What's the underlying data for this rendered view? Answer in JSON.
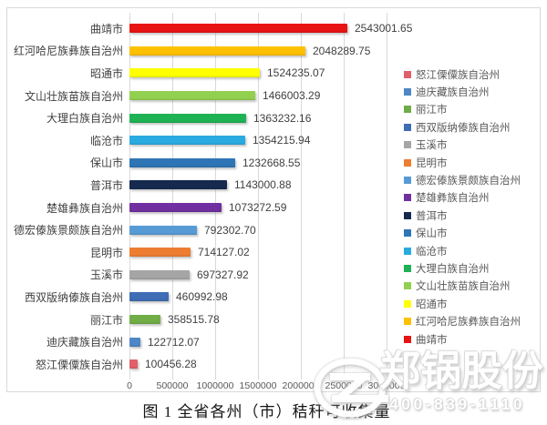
{
  "page": {
    "background_color": "#ffffff",
    "frame_border_color": "#d9d9d9"
  },
  "caption": "图 1 全省各州（市）秸秆可收集量",
  "watermark": {
    "company_name": "郑锅股份",
    "phone": "400-839-1110"
  },
  "chart_data": {
    "type": "bar",
    "orientation": "horizontal",
    "title": "",
    "xlabel": "",
    "ylabel": "",
    "xlim": [
      0,
      3000000
    ],
    "x_ticks": [
      "0",
      "500000",
      "1000000",
      "1500000",
      "2000000",
      "2500000",
      "3000000"
    ],
    "grid": true,
    "legend_position": "right",
    "legend_order": "reverse-of-bars",
    "gridline_color": "#d9d9d9",
    "items": [
      {
        "label": "曲靖市",
        "value": 2543001.65,
        "display": "2543001.65",
        "color": "#e81414"
      },
      {
        "label": "红河哈尼族彝族自治州",
        "value": 2048289.75,
        "display": "2048289.75",
        "color": "#ffc000"
      },
      {
        "label": "昭通市",
        "value": 1524235.07,
        "display": "1524235.07",
        "color": "#ffff00"
      },
      {
        "label": "文山壮族苗族自治州",
        "value": 1466003.29,
        "display": "1466003.29",
        "color": "#92d050"
      },
      {
        "label": "大理白族自治州",
        "value": 1363232.16,
        "display": "1363232.16",
        "color": "#1eb254"
      },
      {
        "label": "临沧市",
        "value": 1354215.94,
        "display": "1354215.94",
        "color": "#29abe2"
      },
      {
        "label": "保山市",
        "value": 1232668.55,
        "display": "1232668.55",
        "color": "#2e75b6"
      },
      {
        "label": "普洱市",
        "value": 1143000.88,
        "display": "1143000.88",
        "color": "#16294f"
      },
      {
        "label": "楚雄彝族自治州",
        "value": 1073272.59,
        "display": "1073272.59",
        "color": "#7030a0"
      },
      {
        "label": "德宏傣族景颇族自治州",
        "value": 792302.7,
        "display": "792302.70",
        "color": "#569bd5"
      },
      {
        "label": "昆明市",
        "value": 714127.02,
        "display": "714127.02",
        "color": "#ed7d31"
      },
      {
        "label": "玉溪市",
        "value": 697327.92,
        "display": "697327.92",
        "color": "#a5a5a5"
      },
      {
        "label": "西双版纳傣族自治州",
        "value": 460992.98,
        "display": "460992.98",
        "color": "#3e6cb5"
      },
      {
        "label": "丽江市",
        "value": 358515.78,
        "display": "358515.78",
        "color": "#70ad47"
      },
      {
        "label": "迪庆藏族自治州",
        "value": 122712.07,
        "display": "122712.07",
        "color": "#4f86c6"
      },
      {
        "label": "怒江傈僳族自治州",
        "value": 100456.28,
        "display": "100456.28",
        "color": "#e05f68"
      }
    ]
  }
}
